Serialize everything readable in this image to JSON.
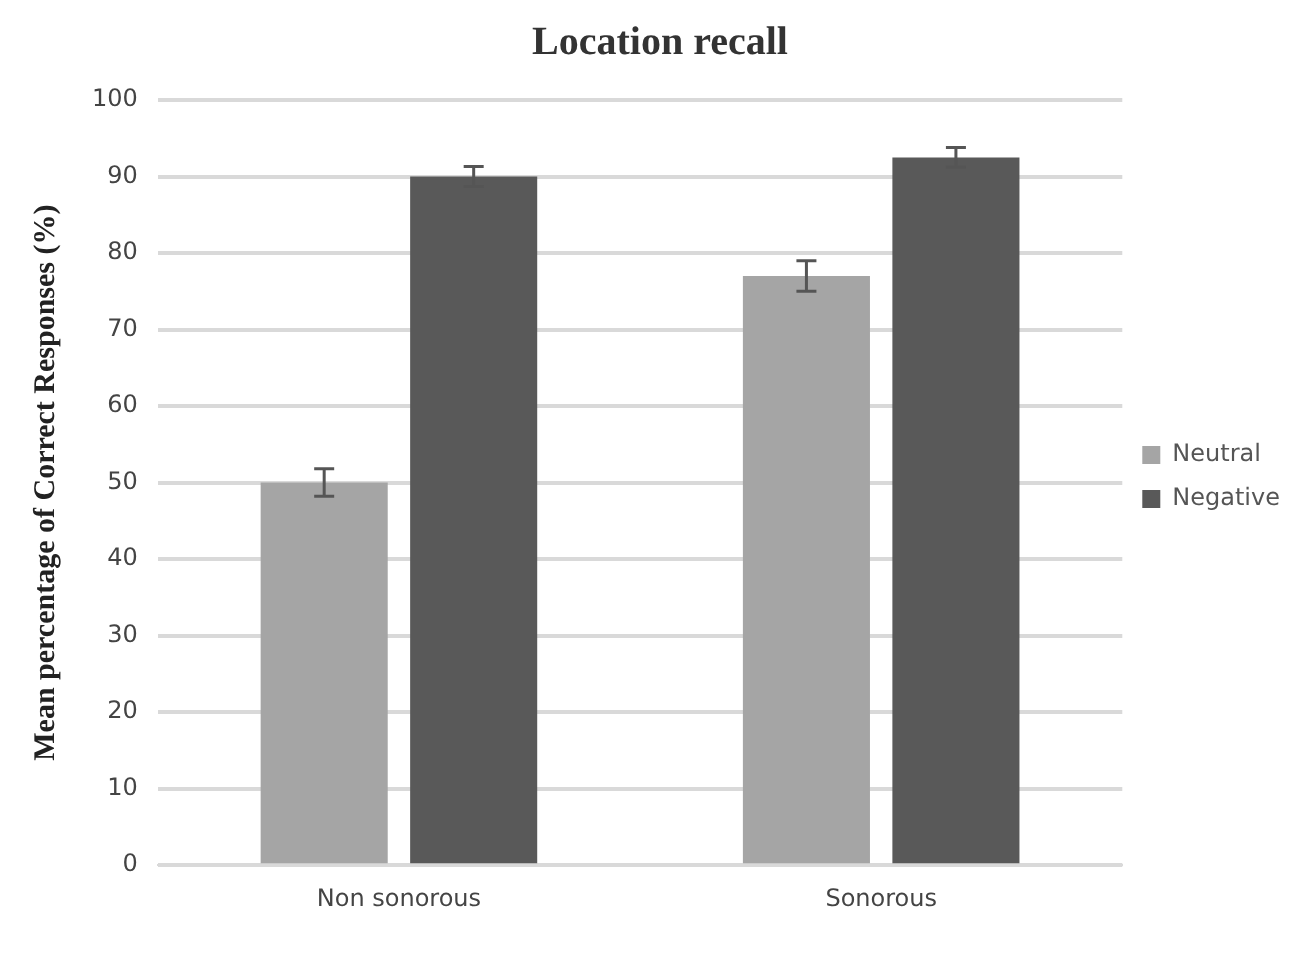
{
  "chart_data": {
    "type": "bar",
    "title": "Location recall",
    "ylabel": "Mean percentage of Correct Responses (%)",
    "categories": [
      "Non sonorous",
      "Sonorous"
    ],
    "series": [
      {
        "name": "Neutral",
        "color": "#a5a5a5",
        "values": [
          50,
          77
        ],
        "errors": [
          1.8,
          2
        ]
      },
      {
        "name": "Negative",
        "color": "#595959",
        "values": [
          90,
          92.5
        ],
        "errors": [
          1.3,
          1.3
        ]
      }
    ],
    "ylim": [
      0,
      100
    ],
    "yticks": [
      0,
      10,
      20,
      30,
      40,
      50,
      60,
      70,
      80,
      90,
      100
    ],
    "grid": "y",
    "legend": "right"
  }
}
